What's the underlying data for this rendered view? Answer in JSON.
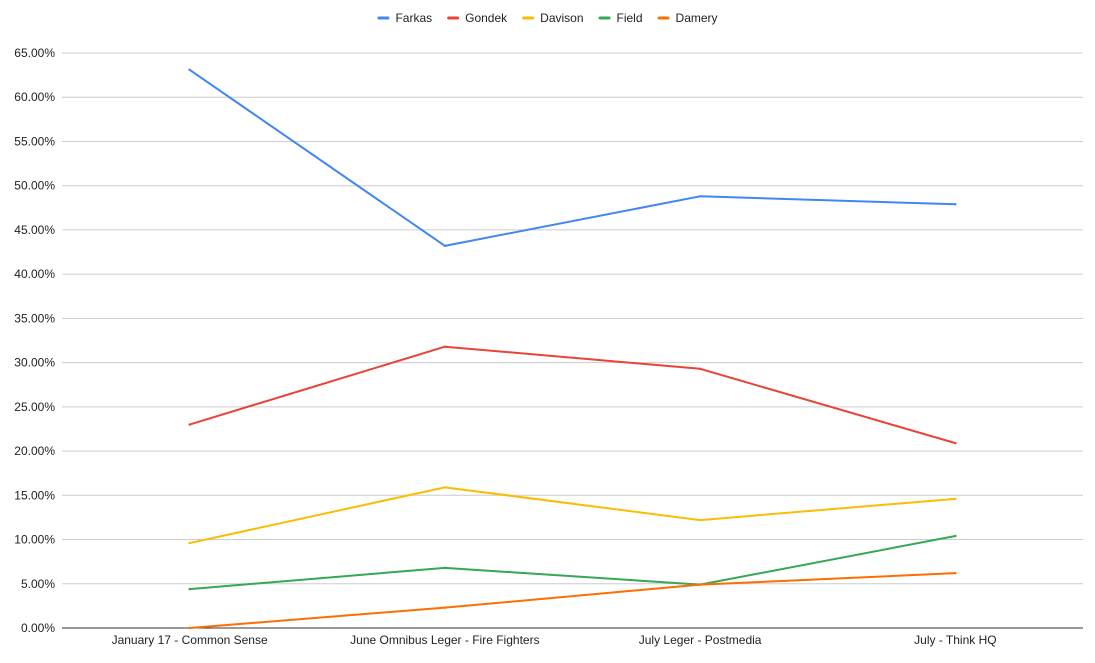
{
  "chart_data": {
    "type": "line",
    "title": "",
    "xlabel": "",
    "ylabel": "",
    "categories": [
      "January 17 - Common Sense",
      "June Omnibus Leger - Fire Fighters",
      "July Leger - Postmedia",
      "July - Think HQ"
    ],
    "ylim": [
      0,
      65
    ],
    "yticks": [
      0,
      5,
      10,
      15,
      20,
      25,
      30,
      35,
      40,
      45,
      50,
      55,
      60,
      65
    ],
    "ytick_labels": [
      "0.00%",
      "5.00%",
      "10.00%",
      "15.00%",
      "20.00%",
      "25.00%",
      "30.00%",
      "35.00%",
      "40.00%",
      "45.00%",
      "50.00%",
      "55.00%",
      "60.00%",
      "65.00%"
    ],
    "grid": true,
    "legend_position": "top-center",
    "series": [
      {
        "name": "Farkas",
        "color": "#4285f4",
        "values": [
          63.1,
          43.2,
          48.8,
          47.9
        ]
      },
      {
        "name": "Gondek",
        "color": "#ea4335",
        "values": [
          23.0,
          31.8,
          29.3,
          20.9
        ]
      },
      {
        "name": "Davison",
        "color": "#fbbc04",
        "values": [
          9.6,
          15.9,
          12.2,
          14.6
        ]
      },
      {
        "name": "Field",
        "color": "#34a853",
        "values": [
          4.4,
          6.8,
          4.9,
          10.4
        ]
      },
      {
        "name": "Damery",
        "color": "#ff6d01",
        "values": [
          0.0,
          2.3,
          4.9,
          6.2
        ]
      }
    ]
  }
}
